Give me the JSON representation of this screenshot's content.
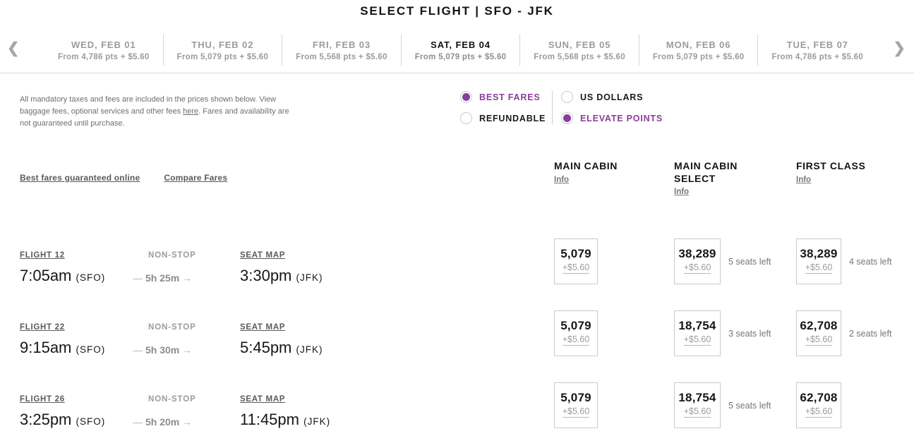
{
  "title": "SELECT FLIGHT | SFO - JFK",
  "icons": {
    "chevron_left": "❮",
    "chevron_right": "❯",
    "duration_dash": "—",
    "duration_arrow": "→"
  },
  "colors": {
    "accent_purple": "#8a3e9d"
  },
  "date_carousel": {
    "days": [
      {
        "label": "WED, FEB 01",
        "from": "From 4,786 pts + $5.60"
      },
      {
        "label": "THU, FEB 02",
        "from": "From 5,079 pts + $5.60"
      },
      {
        "label": "FRI, FEB 03",
        "from": "From 5,568 pts + $5.60"
      },
      {
        "label": "SAT, FEB 04",
        "from": "From 5,079 pts + $5.60"
      },
      {
        "label": "SUN, FEB 05",
        "from": "From 5,568 pts + $5.60"
      },
      {
        "label": "MON, FEB 06",
        "from": "From 5,079 pts + $5.60"
      },
      {
        "label": "TUE, FEB 07",
        "from": "From 4,786 pts + $5.60"
      }
    ],
    "selected_index": 3
  },
  "disclaimer": {
    "pre": "All mandatory taxes and fees are included in the prices shown below. View baggage fees, optional services and other fees ",
    "link": "here",
    "post": ". Fares and availability are not guaranteed until purchase."
  },
  "filters": {
    "best_fares": "BEST FARES",
    "refundable": "REFUNDABLE",
    "us_dollars": "US DOLLARS",
    "elevate_points": "ELEVATE POINTS"
  },
  "links": {
    "best_fares_guaranteed": "Best fares guaranteed online",
    "compare_fares": "Compare Fares"
  },
  "fare_columns": [
    {
      "name": "MAIN CABIN",
      "info": "Info"
    },
    {
      "name": "MAIN CABIN SELECT",
      "info": "Info"
    },
    {
      "name": "FIRST CLASS",
      "info": "Info"
    }
  ],
  "flights": [
    {
      "flight_link": "FLIGHT 12",
      "stops": "NON-STOP",
      "seat_map": "SEAT MAP",
      "dep_time": "7:05am",
      "dep_airport": "(SFO)",
      "duration": "5h 25m",
      "arr_time": "3:30pm",
      "arr_airport": "(JFK)",
      "fares": [
        {
          "points": "5,079",
          "fee": "+$5.60",
          "seats": ""
        },
        {
          "points": "38,289",
          "fee": "+$5.60",
          "seats": "5 seats left"
        },
        {
          "points": "38,289",
          "fee": "+$5.60",
          "seats": "4 seats left"
        }
      ]
    },
    {
      "flight_link": "FLIGHT 22",
      "stops": "NON-STOP",
      "seat_map": "SEAT MAP",
      "dep_time": "9:15am",
      "dep_airport": "(SFO)",
      "duration": "5h 30m",
      "arr_time": "5:45pm",
      "arr_airport": "(JFK)",
      "fares": [
        {
          "points": "5,079",
          "fee": "+$5.60",
          "seats": ""
        },
        {
          "points": "18,754",
          "fee": "+$5.60",
          "seats": "3 seats left"
        },
        {
          "points": "62,708",
          "fee": "+$5.60",
          "seats": "2 seats left"
        }
      ]
    },
    {
      "flight_link": "FLIGHT 26",
      "stops": "NON-STOP",
      "seat_map": "SEAT MAP",
      "dep_time": "3:25pm",
      "dep_airport": "(SFO)",
      "duration": "5h 20m",
      "arr_time": "11:45pm",
      "arr_airport": "(JFK)",
      "fares": [
        {
          "points": "5,079",
          "fee": "+$5.60",
          "seats": ""
        },
        {
          "points": "18,754",
          "fee": "+$5.60",
          "seats": "5 seats left"
        },
        {
          "points": "62,708",
          "fee": "+$5.60",
          "seats": ""
        }
      ]
    }
  ]
}
